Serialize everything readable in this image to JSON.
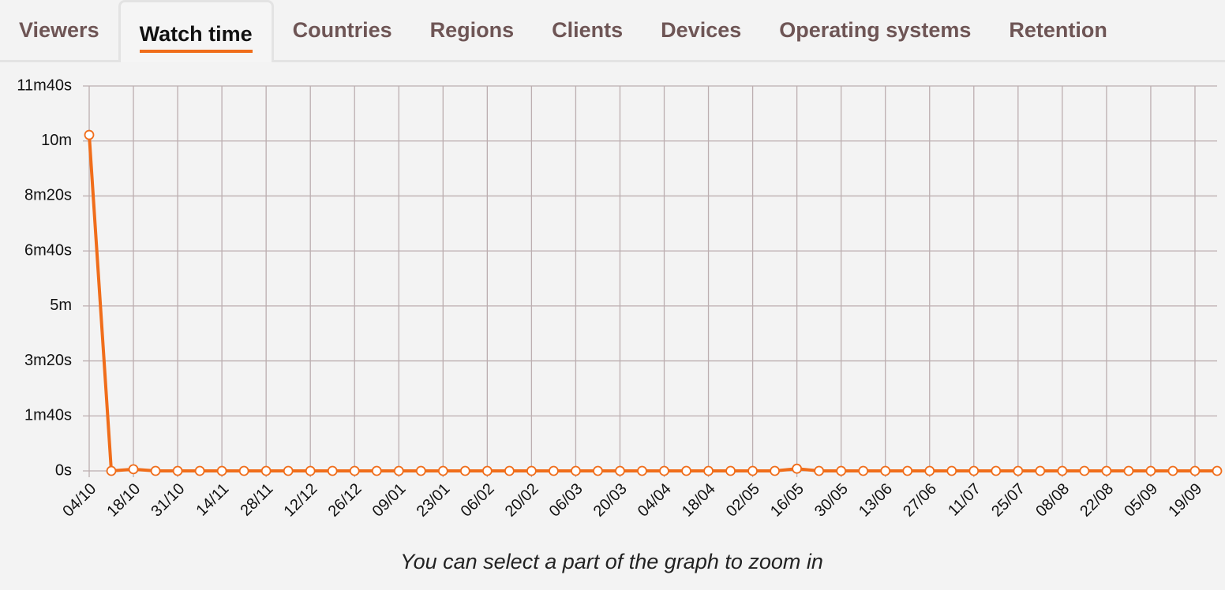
{
  "tabs": [
    {
      "label": "Viewers"
    },
    {
      "label": "Watch time",
      "active": true
    },
    {
      "label": "Countries"
    },
    {
      "label": "Regions"
    },
    {
      "label": "Clients"
    },
    {
      "label": "Devices"
    },
    {
      "label": "Operating systems"
    },
    {
      "label": "Retention"
    }
  ],
  "chart_data": {
    "type": "line",
    "color": "#f06d1a",
    "grid": true,
    "categories": [
      "04/10",
      null,
      "18/10",
      null,
      "31/10",
      null,
      "14/11",
      null,
      "28/11",
      null,
      "12/12",
      null,
      "26/12",
      null,
      "09/01",
      null,
      "23/01",
      null,
      "06/02",
      null,
      "20/02",
      null,
      "06/03",
      null,
      "20/03",
      null,
      "04/04",
      null,
      "18/04",
      null,
      "02/05",
      null,
      "16/05",
      null,
      "30/05",
      null,
      "13/06",
      null,
      "27/06",
      null,
      "11/07",
      null,
      "25/07",
      null,
      "08/08",
      null,
      "22/08",
      null,
      "05/09",
      null,
      "19/09",
      null
    ],
    "values": [
      611,
      0,
      3,
      0,
      0,
      0,
      0,
      0,
      0,
      0,
      0,
      0,
      0,
      0,
      0,
      0,
      0,
      0,
      0,
      0,
      0,
      0,
      0,
      0,
      0,
      0,
      0,
      0,
      0,
      0,
      0,
      0,
      4,
      0,
      0,
      0,
      0,
      0,
      0,
      0,
      0,
      0,
      0,
      0,
      0,
      0,
      0,
      0,
      0,
      0,
      0,
      0
    ],
    "ylim": [
      0,
      700
    ],
    "yticks": [
      {
        "value": 0,
        "label": "0s"
      },
      {
        "value": 100,
        "label": "1m40s"
      },
      {
        "value": 200,
        "label": "3m20s"
      },
      {
        "value": 300,
        "label": "5m"
      },
      {
        "value": 400,
        "label": "6m40s"
      },
      {
        "value": 500,
        "label": "8m20s"
      },
      {
        "value": 600,
        "label": "10m"
      },
      {
        "value": 700,
        "label": "11m40s"
      }
    ],
    "caption": "You can select a part of the graph to zoom in"
  }
}
